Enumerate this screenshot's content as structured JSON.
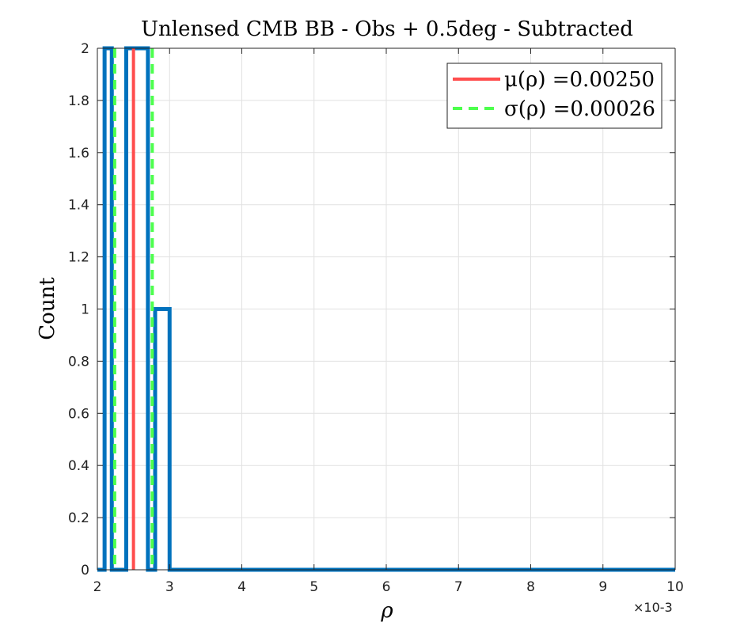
{
  "chart_data": {
    "type": "histogram",
    "title": "Unlensed CMB BB - Obs + 0.5deg - Subtracted",
    "xlabel": "ρ",
    "ylabel": "Count",
    "x_exponent_label": "×10-3",
    "xlim": [
      2,
      10
    ],
    "ylim": [
      0,
      2
    ],
    "xticks": [
      2,
      3,
      4,
      5,
      6,
      7,
      8,
      9,
      10
    ],
    "yticks": [
      0,
      0.2,
      0.4,
      0.6,
      0.8,
      1,
      1.2,
      1.4,
      1.6,
      1.8,
      2
    ],
    "ytick_labels": [
      "0",
      "0.2",
      "0.4",
      "0.6",
      "0.8",
      "1",
      "1.2",
      "1.4",
      "1.6",
      "1.8",
      "2"
    ],
    "grid": true,
    "bins": [
      {
        "x0": 2.0,
        "x1": 2.1,
        "count": 0
      },
      {
        "x0": 2.1,
        "x1": 2.2,
        "count": 2
      },
      {
        "x0": 2.2,
        "x1": 2.4,
        "count": 0
      },
      {
        "x0": 2.4,
        "x1": 2.7,
        "count": 2
      },
      {
        "x0": 2.7,
        "x1": 2.8,
        "count": 0
      },
      {
        "x0": 2.8,
        "x1": 3.0,
        "count": 1
      },
      {
        "x0": 3.0,
        "x1": 10.0,
        "count": 0
      }
    ],
    "bar_color": "#0072BD",
    "mean": 2.5,
    "std": 0.26,
    "mean_color": "#FF4D4D",
    "std_color": "#4DFF4D",
    "legend": {
      "placement": "top-right",
      "entries": [
        {
          "label": "μ(ρ) =0.00250",
          "color": "#FF4D4D",
          "style": "solid"
        },
        {
          "label": "σ(ρ) =0.00026",
          "color": "#4DFF4D",
          "style": "dashed"
        }
      ]
    }
  }
}
